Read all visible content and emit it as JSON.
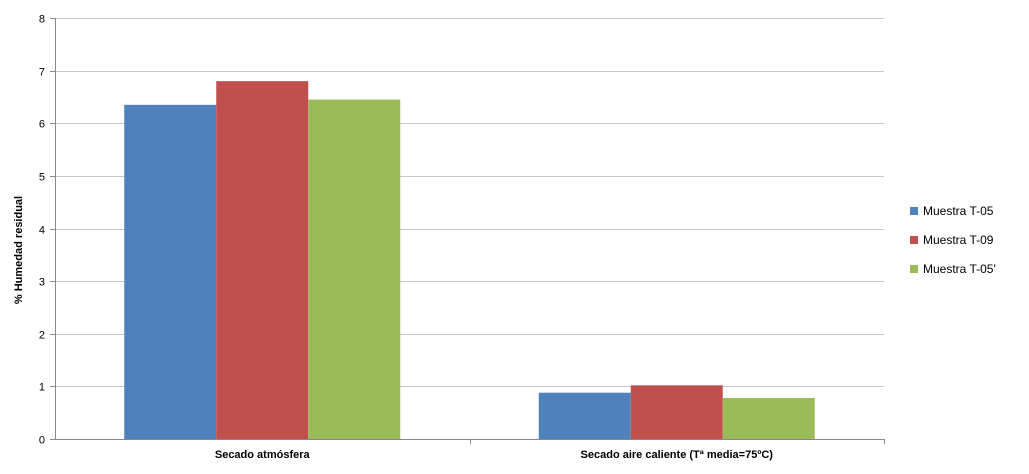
{
  "chart_data": {
    "type": "bar",
    "title": "",
    "xlabel": "",
    "ylabel": "% Humedad residual",
    "ylim": [
      0,
      8
    ],
    "yticks": [
      0,
      1,
      2,
      3,
      4,
      5,
      6,
      7,
      8
    ],
    "grid": true,
    "legend_position": "right",
    "categories": [
      "Secado atmósfera",
      "Secado aire caliente (Tª media=75ºC)"
    ],
    "series": [
      {
        "name": "Muestra T-05",
        "color": "#4F81BD",
        "values": [
          6.35,
          0.88
        ]
      },
      {
        "name": "Muestra T-09",
        "color": "#C0504D",
        "values": [
          6.8,
          1.02
        ]
      },
      {
        "name": "Muestra T-05'",
        "color": "#9BBB59",
        "values": [
          6.45,
          0.78
        ]
      }
    ]
  }
}
